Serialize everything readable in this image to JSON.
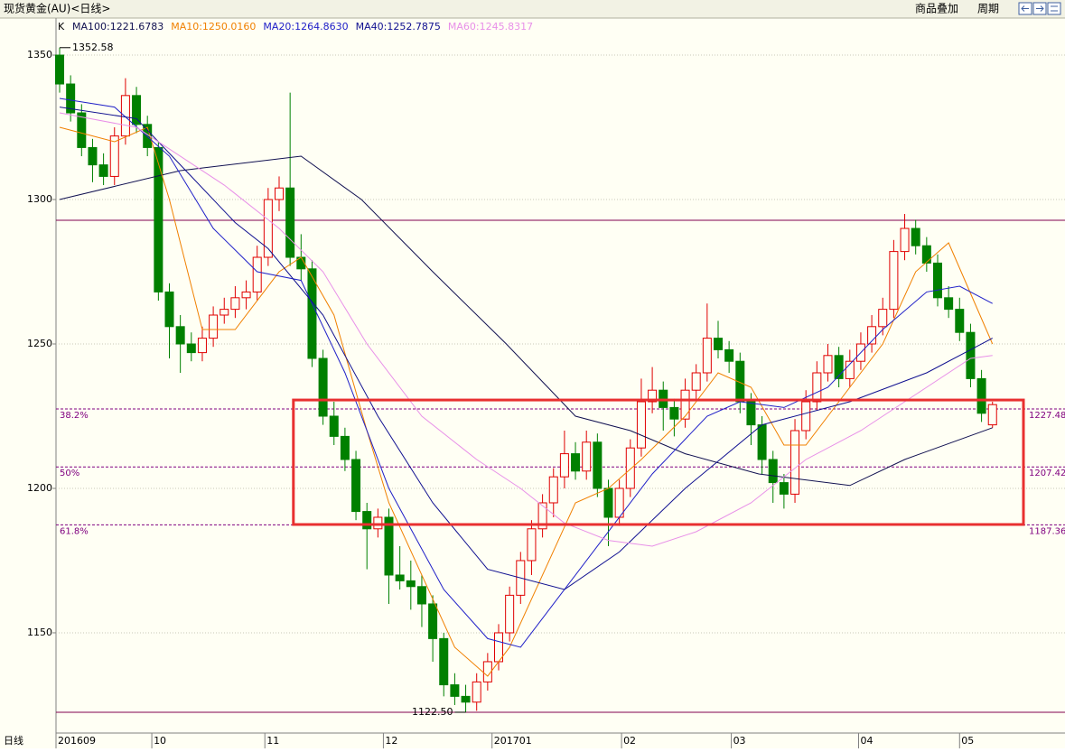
{
  "header": {
    "title": "现货黄金(AU)<日线>",
    "buttons": [
      "商品叠加",
      "周期"
    ]
  },
  "chart_data": {
    "type": "candlestick",
    "indicator": "K",
    "axis_label": "日线",
    "ylim": [
      1115.3,
      1362.2
    ],
    "yticks": [
      1150,
      1200,
      1250,
      1300,
      1350
    ],
    "xlim": [
      -0.33,
      87.82
    ],
    "xticks": [
      {
        "value": -0.33,
        "label": "201609"
      },
      {
        "value": 8.4,
        "label": "10"
      },
      {
        "value": 18.7,
        "label": "11"
      },
      {
        "value": 29.5,
        "label": "12"
      },
      {
        "value": 39.4,
        "label": "201701"
      },
      {
        "value": 51.2,
        "label": "02"
      },
      {
        "value": 61.2,
        "label": "03"
      },
      {
        "value": 72.8,
        "label": "04"
      },
      {
        "value": 82,
        "label": "05"
      }
    ],
    "up_color": "#e00000",
    "down_color": "#008000",
    "ohlc": [
      [
        1350,
        1352.58,
        1337,
        1340
      ],
      [
        1340,
        1343,
        1327,
        1330
      ],
      [
        1330,
        1333,
        1315,
        1318
      ],
      [
        1318,
        1321,
        1306,
        1312
      ],
      [
        1312,
        1316,
        1305,
        1308
      ],
      [
        1308,
        1325,
        1305,
        1322
      ],
      [
        1322,
        1342,
        1319,
        1336
      ],
      [
        1336,
        1339,
        1323,
        1326
      ],
      [
        1326,
        1329,
        1315,
        1318
      ],
      [
        1318,
        1320,
        1265,
        1268
      ],
      [
        1268,
        1271,
        1245,
        1256
      ],
      [
        1256,
        1260,
        1240,
        1250
      ],
      [
        1250,
        1254,
        1244,
        1247
      ],
      [
        1247,
        1256,
        1244,
        1252
      ],
      [
        1252,
        1263,
        1249,
        1260
      ],
      [
        1260,
        1266,
        1257,
        1262
      ],
      [
        1262,
        1270,
        1259,
        1266
      ],
      [
        1266,
        1272,
        1262,
        1268
      ],
      [
        1268,
        1284,
        1265,
        1280
      ],
      [
        1280,
        1304,
        1277,
        1300
      ],
      [
        1300,
        1308,
        1296,
        1304
      ],
      [
        1304,
        1337,
        1277,
        1280
      ],
      [
        1280,
        1288,
        1272,
        1276
      ],
      [
        1276,
        1279,
        1242,
        1245
      ],
      [
        1245,
        1248,
        1222,
        1225
      ],
      [
        1225,
        1230,
        1215,
        1218
      ],
      [
        1218,
        1221,
        1206,
        1210
      ],
      [
        1210,
        1213,
        1189,
        1192
      ],
      [
        1192,
        1195,
        1172,
        1186
      ],
      [
        1186,
        1193,
        1183,
        1190
      ],
      [
        1190,
        1193,
        1160,
        1170
      ],
      [
        1170,
        1180,
        1165,
        1168
      ],
      [
        1168,
        1175,
        1158,
        1166
      ],
      [
        1166,
        1170,
        1152,
        1160
      ],
      [
        1160,
        1163,
        1140,
        1148
      ],
      [
        1148,
        1150,
        1128,
        1132
      ],
      [
        1132,
        1136,
        1125,
        1128
      ],
      [
        1128,
        1132,
        1122.5,
        1126
      ],
      [
        1126,
        1136,
        1123,
        1133
      ],
      [
        1133,
        1143,
        1130,
        1140
      ],
      [
        1140,
        1153,
        1137,
        1150
      ],
      [
        1150,
        1166,
        1147,
        1163
      ],
      [
        1163,
        1178,
        1160,
        1175
      ],
      [
        1175,
        1189,
        1170,
        1186
      ],
      [
        1186,
        1198,
        1183,
        1195
      ],
      [
        1195,
        1207,
        1190,
        1204
      ],
      [
        1204,
        1220,
        1200,
        1212
      ],
      [
        1212,
        1216,
        1203,
        1206
      ],
      [
        1206,
        1220,
        1203,
        1216
      ],
      [
        1216,
        1219,
        1197,
        1200
      ],
      [
        1200,
        1203,
        1180,
        1190
      ],
      [
        1190,
        1203,
        1187,
        1200
      ],
      [
        1200,
        1217,
        1197,
        1214
      ],
      [
        1214,
        1238,
        1211,
        1230
      ],
      [
        1230,
        1242,
        1226,
        1234
      ],
      [
        1234,
        1237,
        1220,
        1228
      ],
      [
        1228,
        1231,
        1218,
        1224
      ],
      [
        1224,
        1238,
        1221,
        1234
      ],
      [
        1234,
        1243,
        1231,
        1240
      ],
      [
        1240,
        1264,
        1237,
        1252
      ],
      [
        1252,
        1258,
        1245,
        1248
      ],
      [
        1248,
        1251,
        1240,
        1244
      ],
      [
        1244,
        1247,
        1226,
        1230
      ],
      [
        1230,
        1233,
        1215,
        1222
      ],
      [
        1222,
        1225,
        1205,
        1210
      ],
      [
        1210,
        1213,
        1195,
        1202
      ],
      [
        1202,
        1205,
        1193,
        1198
      ],
      [
        1198,
        1224,
        1195,
        1220
      ],
      [
        1220,
        1234,
        1217,
        1230
      ],
      [
        1230,
        1244,
        1227,
        1240
      ],
      [
        1240,
        1250,
        1237,
        1246
      ],
      [
        1246,
        1249,
        1235,
        1238
      ],
      [
        1238,
        1248,
        1235,
        1244
      ],
      [
        1244,
        1254,
        1241,
        1250
      ],
      [
        1250,
        1260,
        1247,
        1256
      ],
      [
        1256,
        1266,
        1253,
        1262
      ],
      [
        1262,
        1286,
        1259,
        1282
      ],
      [
        1282,
        1295,
        1279,
        1290
      ],
      [
        1290,
        1293,
        1281,
        1284
      ],
      [
        1284,
        1287,
        1275,
        1278
      ],
      [
        1278,
        1281,
        1263,
        1266
      ],
      [
        1266,
        1270,
        1259,
        1262
      ],
      [
        1262,
        1266,
        1251,
        1254
      ],
      [
        1254,
        1257,
        1235,
        1238
      ],
      [
        1238,
        1241,
        1223,
        1226
      ],
      [
        1222,
        1230,
        1221,
        1229
      ]
    ],
    "series": [
      {
        "name": "MA100:1221.6783",
        "color": "#101050",
        "x": [
          0,
          11,
          22,
          27.5,
          34,
          40.7,
          47,
          52,
          57,
          63.7,
          72,
          77,
          85
        ],
        "values": [
          1300,
          1310,
          1315,
          1300,
          1275,
          1250,
          1225,
          1220,
          1212,
          1205,
          1201,
          1210,
          1221
        ]
      },
      {
        "name": "MA10:1250.0160",
        "color": "#f08000",
        "x": [
          0,
          5,
          8,
          10,
          13,
          16,
          20,
          22,
          25,
          28,
          30,
          33,
          36,
          39,
          41,
          44,
          47,
          50,
          53,
          57,
          60,
          63,
          66,
          68,
          71,
          75,
          78,
          81,
          85
        ],
        "values": [
          1325,
          1320,
          1325,
          1300,
          1255,
          1255,
          1275,
          1280,
          1260,
          1220,
          1195,
          1170,
          1145,
          1135,
          1145,
          1170,
          1195,
          1200,
          1210,
          1225,
          1240,
          1235,
          1215,
          1215,
          1230,
          1250,
          1275,
          1285,
          1250
        ]
      },
      {
        "name": "MA20:1264.8630",
        "color": "#2020c8",
        "x": [
          0,
          5,
          10,
          14,
          18,
          22,
          26,
          30,
          35,
          39,
          42,
          46,
          50,
          54,
          59,
          62,
          66,
          70,
          75,
          79,
          82,
          85
        ],
        "values": [
          1335,
          1332,
          1315,
          1290,
          1275,
          1272,
          1240,
          1200,
          1165,
          1148,
          1145,
          1165,
          1185,
          1205,
          1225,
          1230,
          1228,
          1235,
          1255,
          1268,
          1270,
          1264
        ]
      },
      {
        "name": "MA40:1252.7875",
        "color": "#101090",
        "x": [
          0,
          7,
          11,
          16,
          19,
          24,
          29,
          34,
          39,
          46,
          51,
          57,
          64,
          72,
          79,
          85
        ],
        "values": [
          1332,
          1328,
          1312,
          1292,
          1283,
          1260,
          1225,
          1195,
          1172,
          1165,
          1178,
          1200,
          1222,
          1230,
          1240,
          1252
        ]
      },
      {
        "name": "MA60:1245.8317",
        "color": "#e890e8",
        "x": [
          0,
          7,
          11,
          15,
          20,
          24,
          28,
          33,
          38,
          42,
          46,
          50,
          54,
          58,
          63,
          68,
          73,
          79,
          83,
          85
        ],
        "values": [
          1330,
          1325,
          1315,
          1305,
          1290,
          1275,
          1250,
          1225,
          1210,
          1200,
          1188,
          1182,
          1180,
          1185,
          1195,
          1210,
          1220,
          1235,
          1245,
          1246
        ]
      }
    ],
    "levels": [
      {
        "value": 1292.8,
        "color": "#800050"
      },
      {
        "value": 1122.5,
        "color": "#800050"
      }
    ],
    "fib_levels": [
      {
        "name": "38.2%",
        "value": 1227.48
      },
      {
        "name": "50%",
        "value": 1207.42
      },
      {
        "name": "61.8%",
        "value": 1187.36
      }
    ],
    "fib_color": "#800080",
    "box": {
      "x": [
        21.3,
        87.82
      ],
      "y": [
        1187.5,
        1230.6
      ],
      "color": "#e83030"
    },
    "high_mark": {
      "index": 0,
      "value": 1352.58
    },
    "low_mark": {
      "index": 37,
      "value": 1122.5,
      "label": "1122.50"
    }
  }
}
